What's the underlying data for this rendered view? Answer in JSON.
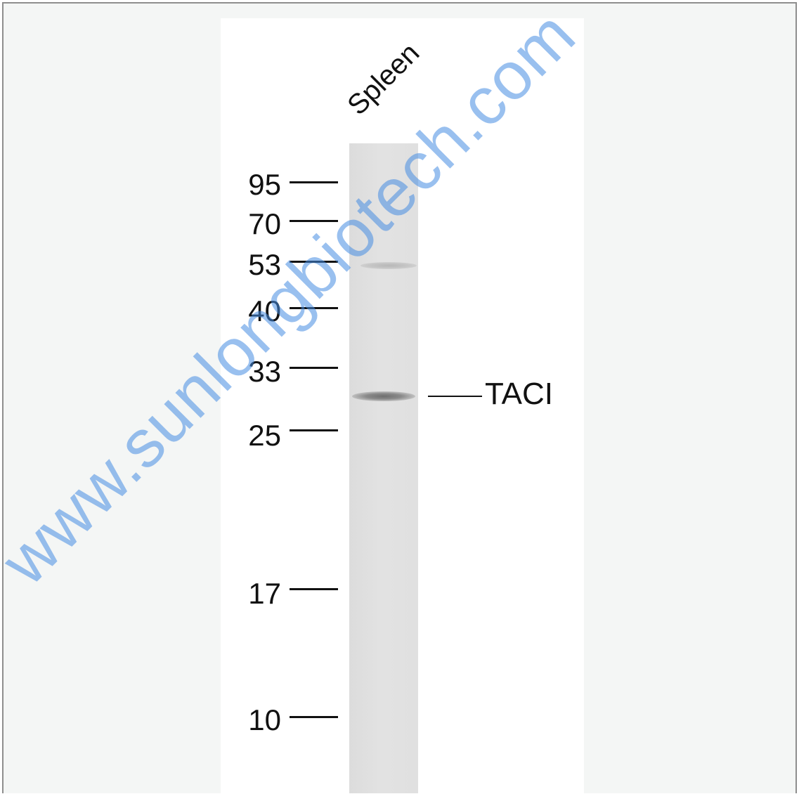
{
  "lane": {
    "label": "Spleen"
  },
  "markers": [
    {
      "label": "95"
    },
    {
      "label": "70"
    },
    {
      "label": "53"
    },
    {
      "label": "40"
    },
    {
      "label": "33"
    },
    {
      "label": "25"
    },
    {
      "label": "17"
    },
    {
      "label": "10"
    }
  ],
  "target": {
    "label": "TACI"
  },
  "watermark": {
    "text": "www.sunlongbiotech.com"
  }
}
